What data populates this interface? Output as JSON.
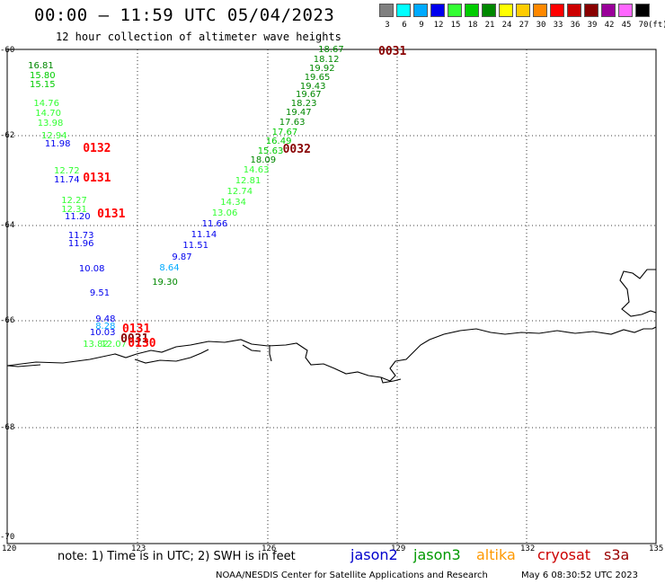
{
  "header": {
    "title": "00:00 – 11:59 UTC 05/04/2023",
    "subtitle": "12 hour collection of altimeter wave heights"
  },
  "colorbar": {
    "unit_label": "(ft)",
    "bins": [
      {
        "label": "3",
        "color": "#808080"
      },
      {
        "label": "6",
        "color": "#00ffff"
      },
      {
        "label": "9",
        "color": "#00aaff"
      },
      {
        "label": "12",
        "color": "#0000ee"
      },
      {
        "label": "15",
        "color": "#33ff33"
      },
      {
        "label": "18",
        "color": "#00cc00"
      },
      {
        "label": "21",
        "color": "#008800"
      },
      {
        "label": "24",
        "color": "#ffff00"
      },
      {
        "label": "27",
        "color": "#ffcc00"
      },
      {
        "label": "30",
        "color": "#ff8800"
      },
      {
        "label": "33",
        "color": "#ff0000"
      },
      {
        "label": "36",
        "color": "#cc0000"
      },
      {
        "label": "39",
        "color": "#880000"
      },
      {
        "label": "42",
        "color": "#990099"
      },
      {
        "label": "45",
        "color": "#ff66ff"
      },
      {
        "label": "70",
        "color": "#000000"
      }
    ]
  },
  "axes": {
    "lat_ticks": [
      "-60",
      "-62",
      "-64",
      "-66",
      "-68",
      "-70"
    ],
    "lon_ticks": [
      "120",
      "123",
      "126",
      "129",
      "132",
      "135"
    ]
  },
  "footer": {
    "note": "note:  1) Time is in UTC;  2) SWH is in feet",
    "satellites": [
      {
        "name": "jason2",
        "color": "#0000cc"
      },
      {
        "name": "jason3",
        "color": "#009900"
      },
      {
        "name": "altika",
        "color": "#ff9900"
      },
      {
        "name": "cryosat",
        "color": "#cc0000"
      },
      {
        "name": "s3a",
        "color": "#990000"
      }
    ],
    "credit": "NOAA/NESDIS Center for Satellite Applications and Research",
    "generated": "May  6 08:30:52 UTC 2023"
  },
  "observations": [
    {
      "text": "18.67",
      "color": "#008800",
      "lon": 127.19,
      "lat": -60.03
    },
    {
      "text": "18.12",
      "color": "#008800",
      "lon": 127.08,
      "lat": -60.24
    },
    {
      "text": "19.92",
      "color": "#008800",
      "lon": 126.98,
      "lat": -60.45
    },
    {
      "text": "19.65",
      "color": "#008800",
      "lon": 126.87,
      "lat": -60.67
    },
    {
      "text": "19.43",
      "color": "#008800",
      "lon": 126.77,
      "lat": -60.88
    },
    {
      "text": "19.67",
      "color": "#008800",
      "lon": 126.67,
      "lat": -61.07
    },
    {
      "text": "18.23",
      "color": "#008800",
      "lon": 126.56,
      "lat": -61.28
    },
    {
      "text": "19.47",
      "color": "#008800",
      "lon": 126.44,
      "lat": -61.47
    },
    {
      "text": "17.63",
      "color": "#008800",
      "lon": 126.29,
      "lat": -61.71
    },
    {
      "text": "17.67",
      "color": "#00cc00",
      "lon": 126.12,
      "lat": -61.94
    },
    {
      "text": "16.49",
      "color": "#00cc00",
      "lon": 125.98,
      "lat": -62.13
    },
    {
      "text": "15.63",
      "color": "#00cc00",
      "lon": 125.79,
      "lat": -62.35
    },
    {
      "text": "18.09",
      "color": "#008800",
      "lon": 125.62,
      "lat": -62.56
    },
    {
      "text": "14.63",
      "color": "#33ff33",
      "lon": 125.46,
      "lat": -62.78
    },
    {
      "text": "12.81",
      "color": "#33ff33",
      "lon": 125.27,
      "lat": -63.01
    },
    {
      "text": "12.74",
      "color": "#33ff33",
      "lon": 125.08,
      "lat": -63.26
    },
    {
      "text": "14.34",
      "color": "#33ff33",
      "lon": 124.93,
      "lat": -63.5
    },
    {
      "text": "13.06",
      "color": "#33ff33",
      "lon": 124.73,
      "lat": -63.73
    },
    {
      "text": "11.66",
      "color": "#0000ee",
      "lon": 124.5,
      "lat": -63.98
    },
    {
      "text": "11.14",
      "color": "#0000ee",
      "lon": 124.25,
      "lat": -64.21
    },
    {
      "text": "11.51",
      "color": "#0000ee",
      "lon": 124.06,
      "lat": -64.44
    },
    {
      "text": "9.87",
      "color": "#0000ee",
      "lon": 123.81,
      "lat": -64.68
    },
    {
      "text": "8.64",
      "color": "#00aaff",
      "lon": 123.52,
      "lat": -64.9
    },
    {
      "text": "19.30",
      "color": "#008800",
      "lon": 123.35,
      "lat": -65.21
    },
    {
      "text": "16.81",
      "color": "#008800",
      "lon": 120.48,
      "lat": -60.4
    },
    {
      "text": "15.80",
      "color": "#00cc00",
      "lon": 120.52,
      "lat": -60.62
    },
    {
      "text": "15.15",
      "color": "#00cc00",
      "lon": 120.52,
      "lat": -60.84
    },
    {
      "text": "14.76",
      "color": "#33ff33",
      "lon": 120.61,
      "lat": -61.28
    },
    {
      "text": "14.70",
      "color": "#33ff33",
      "lon": 120.65,
      "lat": -61.49
    },
    {
      "text": "13.98",
      "color": "#33ff33",
      "lon": 120.7,
      "lat": -61.72
    },
    {
      "text": "12.94",
      "color": "#33ff33",
      "lon": 120.79,
      "lat": -62.02
    },
    {
      "text": "11.98",
      "color": "#0000ee",
      "lon": 120.87,
      "lat": -62.19
    },
    {
      "text": "12.72",
      "color": "#33ff33",
      "lon": 121.08,
      "lat": -62.79
    },
    {
      "text": "11.74",
      "color": "#0000ee",
      "lon": 121.08,
      "lat": -63.0
    },
    {
      "text": "12.27",
      "color": "#33ff33",
      "lon": 121.25,
      "lat": -63.45
    },
    {
      "text": "12.31",
      "color": "#33ff33",
      "lon": 121.25,
      "lat": -63.66
    },
    {
      "text": "11.20",
      "color": "#0000ee",
      "lon": 121.33,
      "lat": -63.81
    },
    {
      "text": "11.73",
      "color": "#0000ee",
      "lon": 121.41,
      "lat": -64.23
    },
    {
      "text": "11.96",
      "color": "#0000ee",
      "lon": 121.41,
      "lat": -64.39
    },
    {
      "text": "10.08",
      "color": "#0000ee",
      "lon": 121.66,
      "lat": -64.92
    },
    {
      "text": "9.51",
      "color": "#0000ee",
      "lon": 121.91,
      "lat": -65.44
    },
    {
      "text": "9.48",
      "color": "#0000ee",
      "lon": 122.04,
      "lat": -65.98
    },
    {
      "text": "8.28",
      "color": "#00aaff",
      "lon": 122.04,
      "lat": -66.11
    },
    {
      "text": "10.03",
      "color": "#0000ee",
      "lon": 121.91,
      "lat": -66.24
    },
    {
      "text": "13.82",
      "color": "#33ff33",
      "lon": 121.75,
      "lat": -66.46
    },
    {
      "text": "12.07",
      "color": "#33ff33",
      "lon": 122.17,
      "lat": -66.46
    }
  ],
  "pass_times": [
    {
      "text": "0031",
      "color": "#880000",
      "lon": 128.58,
      "lat": -60.02
    },
    {
      "text": "0032",
      "color": "#880000",
      "lon": 126.37,
      "lat": -62.27
    },
    {
      "text": "0132",
      "color": "#ff0000",
      "lon": 121.75,
      "lat": -62.25
    },
    {
      "text": "0131",
      "color": "#ff0000",
      "lon": 121.75,
      "lat": -62.92
    },
    {
      "text": "0131",
      "color": "#ff0000",
      "lon": 122.08,
      "lat": -63.71
    },
    {
      "text": "0131",
      "color": "#ff0000",
      "lon": 122.66,
      "lat": -66.13
    },
    {
      "text": "0031",
      "color": "#880000",
      "lon": 122.62,
      "lat": -66.32
    },
    {
      "text": "0130",
      "color": "#ff0000",
      "lon": 122.79,
      "lat": -66.4
    }
  ]
}
